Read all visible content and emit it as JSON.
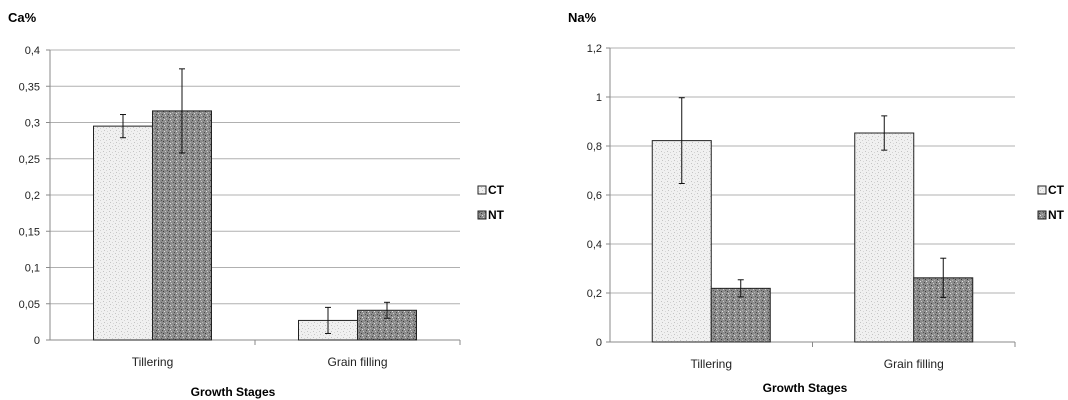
{
  "chart_data": [
    {
      "type": "bar",
      "title": "Ca%",
      "xlabel": "Growth Stages",
      "ylabel": "",
      "categories": [
        "Tillering",
        "Grain filling"
      ],
      "ylim": [
        0,
        0.4
      ],
      "yticks": [
        "0",
        "0,05",
        "0,1",
        "0,15",
        "0,2",
        "0,25",
        "0,3",
        "0,35",
        "0,4"
      ],
      "grid": true,
      "legend_position": "right",
      "series": [
        {
          "name": "CT",
          "values": [
            0.295,
            0.027
          ],
          "error": [
            0.016,
            0.018
          ]
        },
        {
          "name": "NT",
          "values": [
            0.316,
            0.041
          ],
          "error": [
            0.058,
            0.011
          ]
        }
      ]
    },
    {
      "type": "bar",
      "title": "Na%",
      "xlabel": "Growth Stages",
      "ylabel": "",
      "categories": [
        "Tillering",
        "Grain filling"
      ],
      "ylim": [
        0,
        1.2
      ],
      "yticks": [
        "0",
        "0,2",
        "0,4",
        "0,6",
        "0,8",
        "1",
        "1,2"
      ],
      "grid": true,
      "legend_position": "right",
      "series": [
        {
          "name": "CT",
          "values": [
            0.822,
            0.853
          ],
          "error": [
            0.175,
            0.07
          ]
        },
        {
          "name": "NT",
          "values": [
            0.219,
            0.262
          ],
          "error": [
            0.035,
            0.08
          ]
        }
      ]
    }
  ],
  "colors": {
    "ct_fill": "#f0f0f0",
    "ct_speckle": "#c4c4c4",
    "nt_fill": "#8c8c8c",
    "nt_speckle": "#4a4a4a",
    "grid": "#b0b0b0",
    "axis": "#8a8a8a",
    "bar_stroke": "#222222"
  }
}
